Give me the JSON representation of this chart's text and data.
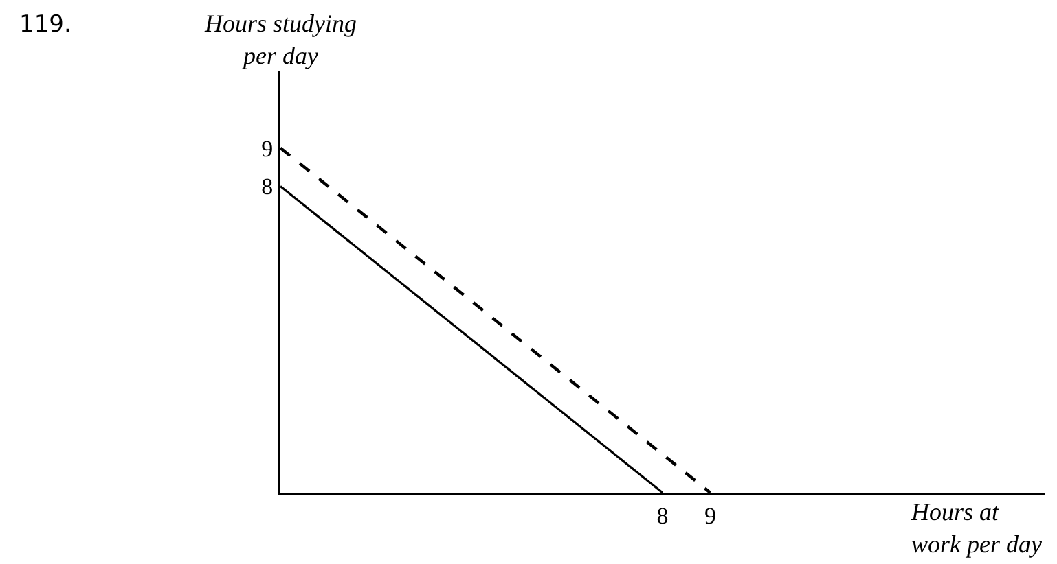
{
  "chart_data": {
    "type": "line",
    "xlabel": "Hours at\nwork per day",
    "ylabel": "Hours studying\nper day",
    "annotations": [
      "119."
    ],
    "series": [
      {
        "color": "#000000",
        "x": [
          0,
          8
        ],
        "values": [
          8,
          0
        ],
        "line_style": "solid"
      },
      {
        "color": "#000000",
        "x": [
          0,
          9
        ],
        "values": [
          9,
          0
        ],
        "line_style": "dashed"
      }
    ],
    "xlim": [
      0,
      16
    ],
    "ylim": [
      0,
      11
    ],
    "xticks": [
      8,
      9
    ],
    "yticks": [
      8,
      9
    ],
    "marker": "none"
  }
}
